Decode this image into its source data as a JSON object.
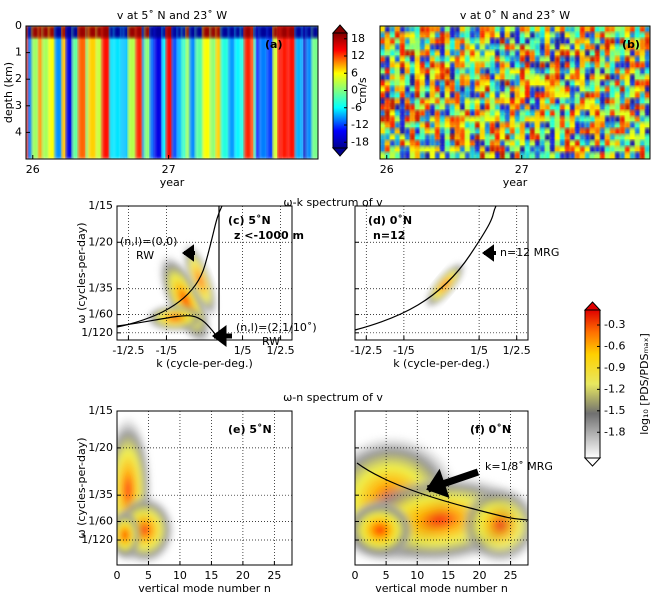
{
  "section_titles": [
    "ω-k spectrum of v",
    "ω-n spectrum of v"
  ],
  "chart_data": [
    {
      "type": "heatmap",
      "title": "v at 5˚ N and 23˚ W",
      "xlabel": "year",
      "ylabel": "depth (km)",
      "xlim": [
        25.95,
        28.1
      ],
      "ylim": [
        5,
        0
      ],
      "xticks": [
        26,
        27
      ],
      "yticks": [
        0,
        1,
        2,
        3,
        4
      ],
      "annotations": [
        "(a)"
      ],
      "colormap": "jet"
    },
    {
      "type": "heatmap",
      "title": "v at 0˚ N and 23˚ W",
      "xlabel": "year",
      "xlim": [
        25.95,
        27.95
      ],
      "ylim": [
        5,
        0
      ],
      "xticks": [
        26,
        27
      ],
      "annotations": [
        "(b)"
      ],
      "colormap": "jet"
    },
    {
      "type": "spectrum",
      "xlabel": "k (cycle-per-deg.)",
      "ylabel": "ω (cycles-per-day)",
      "xlim": [
        -0.46,
        0.46
      ],
      "ylim": [
        0.005,
        0.0667
      ],
      "xticks": [
        {
          "value": -0.4,
          "label": "-1/2.5"
        },
        {
          "value": -0.2,
          "label": "-1/5"
        },
        {
          "value": 0.2,
          "label": "1/5"
        },
        {
          "value": 0.4,
          "label": "1/2.5"
        }
      ],
      "yticks": [
        {
          "value": 0.0667,
          "label": "1/15"
        },
        {
          "value": 0.05,
          "label": "1/20"
        },
        {
          "value": 0.0286,
          "label": "1/35"
        },
        {
          "value": 0.0167,
          "label": "1/60"
        },
        {
          "value": 0.0083,
          "label": "1/120"
        }
      ],
      "grid": true,
      "annotations": [
        "(c) 5˚N",
        "z <-1000 m",
        "(n,l)=(0,0)",
        "RW",
        "(n,l)=(2,1/10˚)",
        "RW"
      ]
    },
    {
      "type": "spectrum",
      "xlabel": "k (cycle-per-deg.)",
      "xlim": [
        -0.46,
        0.46
      ],
      "ylim": [
        0.005,
        0.0667
      ],
      "xticks": [
        {
          "value": -0.4,
          "label": "-1/2.5"
        },
        {
          "value": -0.2,
          "label": "-1/5"
        },
        {
          "value": 0.2,
          "label": "1/5"
        },
        {
          "value": 0.4,
          "label": "1/2.5"
        }
      ],
      "yticks": [
        0.0667,
        0.05,
        0.0286,
        0.0167,
        0.0083
      ],
      "ytick_labels": false,
      "grid": true,
      "annotations": [
        "(d) 0˚N",
        "n=12",
        "n=12 MRG"
      ]
    },
    {
      "type": "spectrum",
      "xlabel": "vertical mode number n",
      "ylabel": "ω (cycles-per-day)",
      "xlim": [
        0,
        27.8
      ],
      "ylim": [
        -0.003,
        0.0667
      ],
      "xticks": [
        0,
        5,
        10,
        15,
        20,
        25
      ],
      "yticks": [
        {
          "value": 0.0667,
          "label": "1/15"
        },
        {
          "value": 0.05,
          "label": "1/20"
        },
        {
          "value": 0.0286,
          "label": "1/35"
        },
        {
          "value": 0.0167,
          "label": "1/60"
        },
        {
          "value": 0.0083,
          "label": "1/120"
        }
      ],
      "grid": true,
      "annotations": [
        "(e) 5˚N"
      ]
    },
    {
      "type": "spectrum",
      "xlabel": "vertical mode number n",
      "xlim": [
        0,
        27.8
      ],
      "ylim": [
        -0.003,
        0.0667
      ],
      "xticks": [
        0,
        5,
        10,
        15,
        20,
        25
      ],
      "yticks": [
        0.0667,
        0.05,
        0.0286,
        0.0167,
        0.0083
      ],
      "ytick_labels": false,
      "grid": true,
      "annotations": [
        "(f) 0˚N",
        "k=1/8˚ MRG"
      ]
    }
  ],
  "colorbars": [
    {
      "label": "cm/s",
      "lim": [
        -20,
        20
      ],
      "ticks": [
        18,
        12,
        6,
        0,
        -6,
        -12,
        -18
      ],
      "colormap": "jet"
    },
    {
      "label": "log₁₀ [PDS/PDSₘₐₓ]",
      "lim": [
        -2.16,
        -0.09
      ],
      "ticks": [
        -0.3,
        -0.6,
        -0.9,
        -1.2,
        -1.5,
        -1.8
      ],
      "colormap": "gray-yellow-red"
    }
  ]
}
